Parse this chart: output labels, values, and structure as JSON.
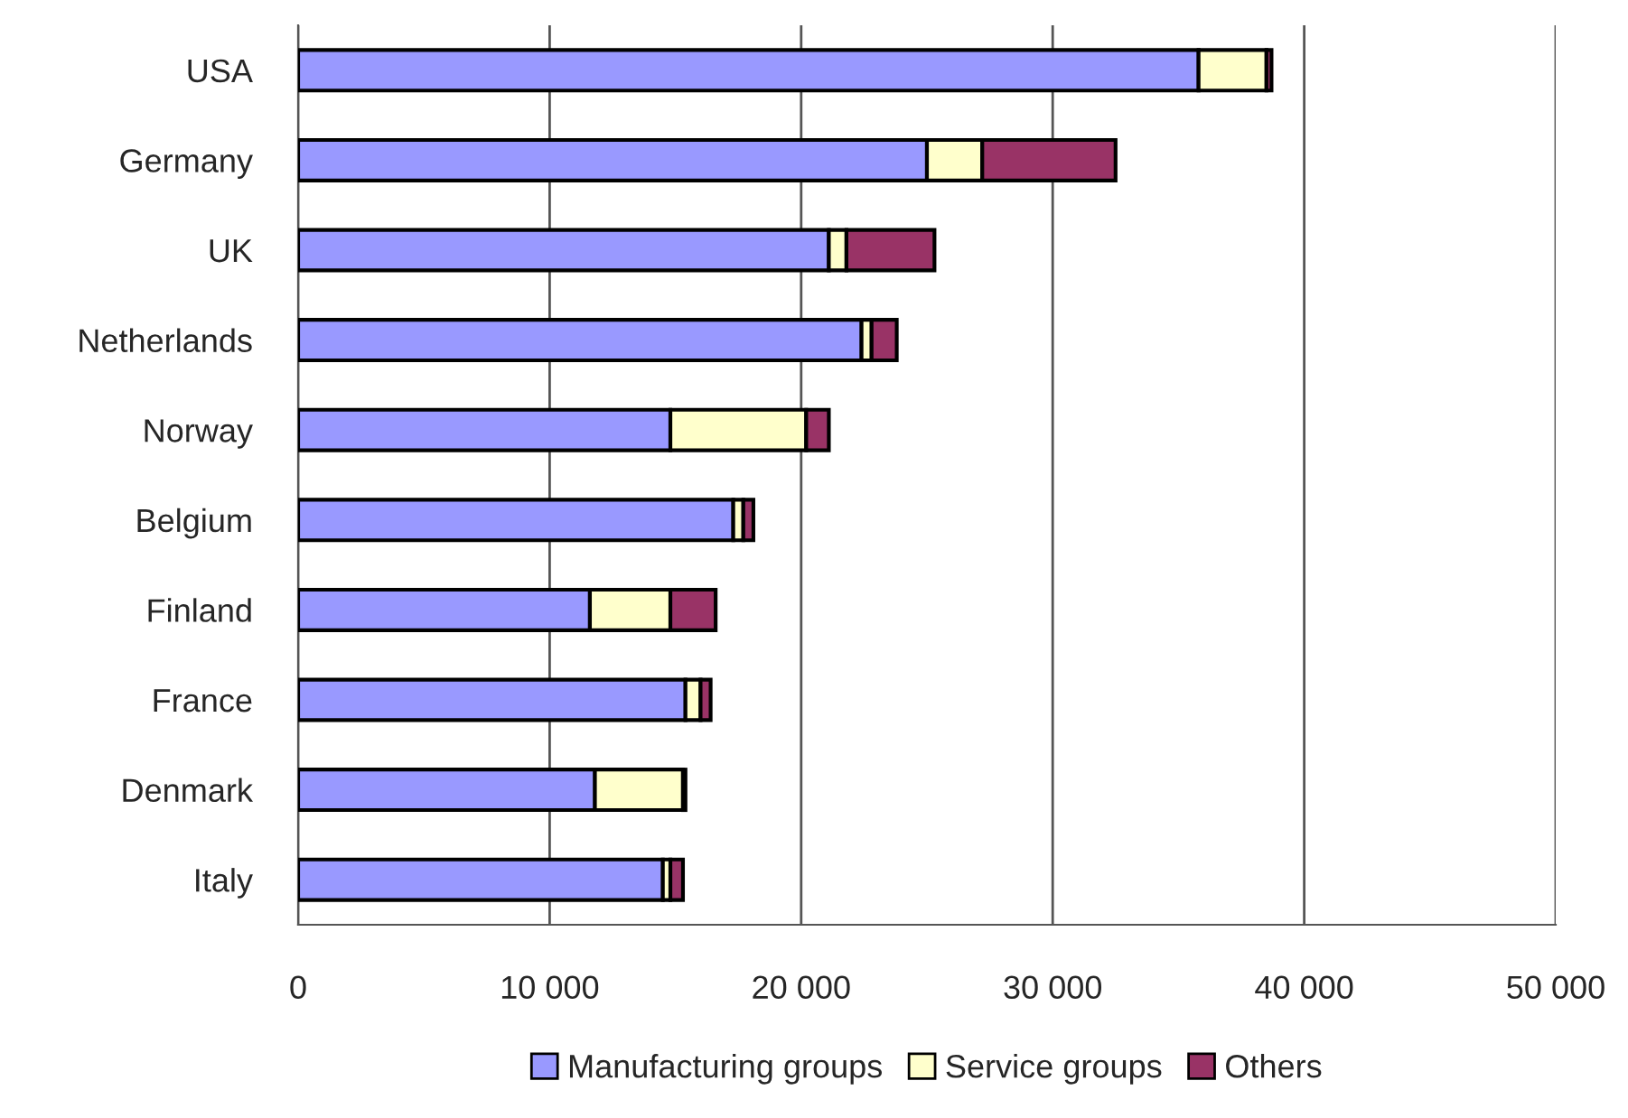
{
  "chart_data": {
    "type": "bar",
    "orientation": "horizontal",
    "stacked": true,
    "categories": [
      "USA",
      "Germany",
      "UK",
      "Netherlands",
      "Norway",
      "Belgium",
      "Finland",
      "France",
      "Denmark",
      "Italy"
    ],
    "series": [
      {
        "name": "Manufacturing groups",
        "color": "#9999ff",
        "values": [
          35800,
          25000,
          21100,
          22400,
          14800,
          17300,
          11600,
          15400,
          11800,
          14500
        ]
      },
      {
        "name": "Service groups",
        "color": "#ffffcc",
        "values": [
          2700,
          2200,
          700,
          400,
          5400,
          400,
          3200,
          600,
          3500,
          300
        ]
      },
      {
        "name": "Others",
        "color": "#993366",
        "values": [
          200,
          5300,
          3500,
          1000,
          900,
          400,
          1800,
          400,
          100,
          500
        ]
      }
    ],
    "xlim": [
      0,
      50000
    ],
    "xticks": [
      0,
      {
        "value": 10000,
        "label": "10 000"
      },
      {
        "value": 20000,
        "label": "20 000"
      },
      {
        "value": 30000,
        "label": "30 000"
      },
      {
        "value": 40000,
        "label": "40 000"
      },
      {
        "value": 50000,
        "label": "50 000"
      }
    ],
    "grid": "x",
    "legend": "bottom"
  }
}
